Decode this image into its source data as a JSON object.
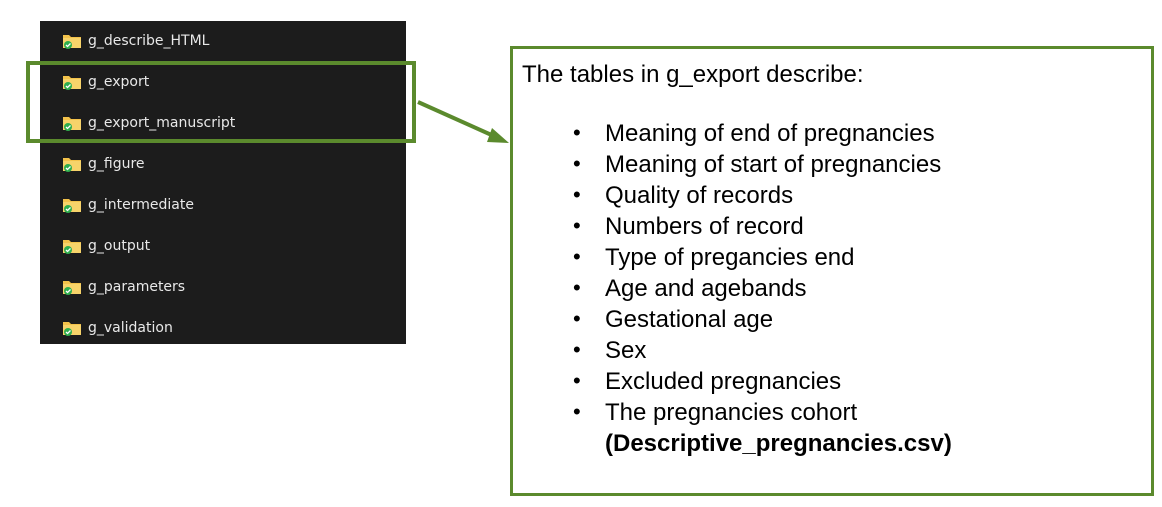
{
  "explorer": {
    "folders": [
      {
        "label": "g_describe_HTML"
      },
      {
        "label": "g_export"
      },
      {
        "label": "g_export_manuscript"
      },
      {
        "label": "g_figure"
      },
      {
        "label": "g_intermediate"
      },
      {
        "label": "g_output"
      },
      {
        "label": "g_parameters"
      },
      {
        "label": "g_validation"
      }
    ],
    "icon": "folder-synced-icon"
  },
  "colors": {
    "accent": "#5b8a2d",
    "explorer_bg": "#1c1c1c",
    "folder_yellow": "#f3c24a",
    "sync_check": "#2fae4e"
  },
  "callout": {
    "heading": "The tables in g_export describe:",
    "items": [
      {
        "text": "Meaning of end of pregnancies"
      },
      {
        "text": "Meaning of start of pregnancies"
      },
      {
        "text": "Quality of records"
      },
      {
        "text": "Numbers of record"
      },
      {
        "text": "Type of pregancies end"
      },
      {
        "text": "Age and agebands"
      },
      {
        "text": "Gestational age"
      },
      {
        "text": "Sex"
      },
      {
        "text": "Excluded pregnancies"
      },
      {
        "text": "The pregnancies cohort",
        "bold": "(Descriptive_pregnancies.csv)"
      }
    ],
    "bullet_char": "•"
  }
}
